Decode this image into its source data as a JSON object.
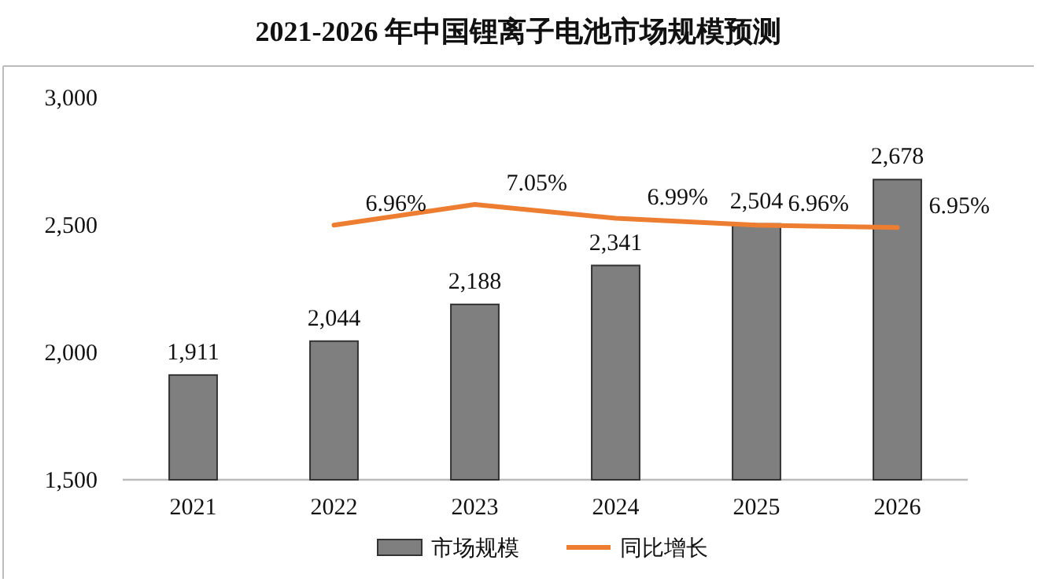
{
  "chart_data": {
    "type": "bar",
    "title": "2021-2026 年中国锂离子电池市场规模预测",
    "categories": [
      "2021",
      "2022",
      "2023",
      "2024",
      "2025",
      "2026"
    ],
    "series": [
      {
        "name": "市场规模",
        "color": "#7f7f7f",
        "values": [
          1911,
          2044,
          2188,
          2341,
          2504,
          2678
        ],
        "value_labels": [
          "1,911",
          "2,044",
          "2,188",
          "2,341",
          "2,504",
          "2,678"
        ]
      },
      {
        "name": "同比增长",
        "type": "line",
        "axis": "y2",
        "color": "#ed7d31",
        "values": [
          null,
          6.96,
          7.05,
          6.99,
          6.96,
          6.95
        ],
        "value_labels": [
          null,
          "6.96%",
          "7.05%",
          "6.99%",
          "6.96%",
          "6.95%"
        ]
      }
    ],
    "ylim": [
      1500,
      3000
    ],
    "yticks": [
      {
        "value": 1500,
        "label": "1,500"
      },
      {
        "value": 2000,
        "label": "2,000"
      },
      {
        "value": 2500,
        "label": "2,500"
      },
      {
        "value": 3000,
        "label": "3,000"
      }
    ],
    "legend": "bottom",
    "grid": false,
    "marker": "none",
    "line_style": "solid"
  }
}
